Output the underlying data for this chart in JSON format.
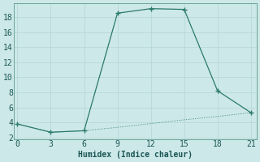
{
  "xlabel": "Humidex (Indice chaleur)",
  "background_color": "#cde8e8",
  "grid_color": "#b8d8d8",
  "grid_minor_color": "#d0e4e4",
  "line_color": "#2a7a6a",
  "series1_x": [
    0,
    3,
    6,
    9,
    12,
    15,
    18,
    21
  ],
  "series1_y": [
    3.8,
    2.7,
    2.9,
    18.5,
    19.1,
    19.0,
    8.2,
    5.3
  ],
  "series2_x": [
    0,
    3,
    6,
    9,
    12,
    15,
    18,
    21
  ],
  "series2_y": [
    3.8,
    2.7,
    2.9,
    3.35,
    3.85,
    4.35,
    4.8,
    5.3
  ],
  "xlim": [
    -0.3,
    21.5
  ],
  "ylim": [
    1.8,
    19.8
  ],
  "xticks": [
    0,
    3,
    6,
    9,
    12,
    15,
    18,
    21
  ],
  "yticks": [
    2,
    4,
    6,
    8,
    10,
    12,
    14,
    16,
    18
  ],
  "label_fontsize": 7,
  "tick_fontsize": 7
}
